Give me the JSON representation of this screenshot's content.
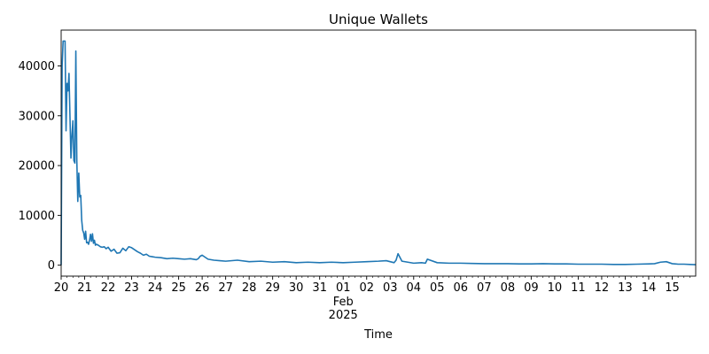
{
  "chart_data": {
    "type": "line",
    "title": "Unique Wallets",
    "xlabel": "Time",
    "ylabel": "",
    "ylim": [
      -2200,
      47200
    ],
    "y_ticks": [
      0,
      10000,
      20000,
      30000,
      40000
    ],
    "y_tick_labels": [
      "0",
      "10000",
      "20000",
      "30000",
      "40000"
    ],
    "xlim": [
      "2025-01-20",
      "2025-02-16"
    ],
    "x_ticks": [
      {
        "date": "2025-01-20",
        "label": "20"
      },
      {
        "date": "2025-01-21",
        "label": "21"
      },
      {
        "date": "2025-01-22",
        "label": "22"
      },
      {
        "date": "2025-01-23",
        "label": "23"
      },
      {
        "date": "2025-01-24",
        "label": "24"
      },
      {
        "date": "2025-01-25",
        "label": "25"
      },
      {
        "date": "2025-01-26",
        "label": "26"
      },
      {
        "date": "2025-01-27",
        "label": "27"
      },
      {
        "date": "2025-01-28",
        "label": "28"
      },
      {
        "date": "2025-01-29",
        "label": "29"
      },
      {
        "date": "2025-01-30",
        "label": "30"
      },
      {
        "date": "2025-01-31",
        "label": "31"
      },
      {
        "date": "2025-02-01",
        "label": "01",
        "sub1": "Feb",
        "sub2": "2025"
      },
      {
        "date": "2025-02-02",
        "label": "02"
      },
      {
        "date": "2025-02-03",
        "label": "03"
      },
      {
        "date": "2025-02-04",
        "label": "04"
      },
      {
        "date": "2025-02-05",
        "label": "05"
      },
      {
        "date": "2025-02-06",
        "label": "06"
      },
      {
        "date": "2025-02-07",
        "label": "07"
      },
      {
        "date": "2025-02-08",
        "label": "08"
      },
      {
        "date": "2025-02-09",
        "label": "09"
      },
      {
        "date": "2025-02-10",
        "label": "10"
      },
      {
        "date": "2025-02-11",
        "label": "11"
      },
      {
        "date": "2025-02-12",
        "label": "12"
      },
      {
        "date": "2025-02-13",
        "label": "13"
      },
      {
        "date": "2025-02-14",
        "label": "14"
      },
      {
        "date": "2025-02-15",
        "label": "15"
      }
    ],
    "grid": false,
    "legend": "none",
    "line_color": "#1f77b4",
    "series": [
      {
        "x": [
          "2025-01-20 00:00",
          "2025-01-20 01:00",
          "2025-01-20 02:00",
          "2025-01-20 03:00",
          "2025-01-20 04:00",
          "2025-01-20 05:00",
          "2025-01-20 06:00",
          "2025-01-20 07:00",
          "2025-01-20 08:00",
          "2025-01-20 09:00",
          "2025-01-20 10:00",
          "2025-01-20 11:00",
          "2025-01-20 12:00",
          "2025-01-20 13:00",
          "2025-01-20 14:00",
          "2025-01-20 15:00",
          "2025-01-20 16:00",
          "2025-01-20 17:00",
          "2025-01-20 18:00",
          "2025-01-20 19:00",
          "2025-01-20 20:00",
          "2025-01-20 21:00",
          "2025-01-20 22:00",
          "2025-01-20 23:00",
          "2025-01-21 00:00",
          "2025-01-21 01:00",
          "2025-01-21 02:00",
          "2025-01-21 03:00",
          "2025-01-21 04:00",
          "2025-01-21 05:00",
          "2025-01-21 06:00",
          "2025-01-21 07:00",
          "2025-01-21 08:00",
          "2025-01-21 09:00",
          "2025-01-21 10:00",
          "2025-01-21 11:00",
          "2025-01-21 12:00",
          "2025-01-21 14:00",
          "2025-01-21 16:00",
          "2025-01-21 18:00",
          "2025-01-21 20:00",
          "2025-01-21 22:00",
          "2025-01-22 00:00",
          "2025-01-22 03:00",
          "2025-01-22 06:00",
          "2025-01-22 09:00",
          "2025-01-22 12:00",
          "2025-01-22 15:00",
          "2025-01-22 18:00",
          "2025-01-22 21:00",
          "2025-01-23 00:00",
          "2025-01-23 03:00",
          "2025-01-23 06:00",
          "2025-01-23 09:00",
          "2025-01-23 12:00",
          "2025-01-23 15:00",
          "2025-01-23 18:00",
          "2025-01-23 21:00",
          "2025-01-24 00:00",
          "2025-01-24 06:00",
          "2025-01-24 12:00",
          "2025-01-24 18:00",
          "2025-01-25 00:00",
          "2025-01-25 06:00",
          "2025-01-25 12:00",
          "2025-01-25 18:00",
          "2025-01-25 20:00",
          "2025-01-25 22:00",
          "2025-01-26 00:00",
          "2025-01-26 06:00",
          "2025-01-26 12:00",
          "2025-01-26 18:00",
          "2025-01-27 00:00",
          "2025-01-27 12:00",
          "2025-01-28 00:00",
          "2025-01-28 12:00",
          "2025-01-29 00:00",
          "2025-01-29 12:00",
          "2025-01-30 00:00",
          "2025-01-30 12:00",
          "2025-01-31 00:00",
          "2025-01-31 12:00",
          "2025-02-01 00:00",
          "2025-02-01 12:00",
          "2025-02-02 00:00",
          "2025-02-02 12:00",
          "2025-02-02 20:00",
          "2025-02-03 00:00",
          "2025-02-03 04:00",
          "2025-02-03 06:00",
          "2025-02-03 08:00",
          "2025-02-03 12:00",
          "2025-02-04 00:00",
          "2025-02-04 08:00",
          "2025-02-04 12:00",
          "2025-02-04 14:00",
          "2025-02-05 00:00",
          "2025-02-05 12:00",
          "2025-02-06 00:00",
          "2025-02-06 12:00",
          "2025-02-07 00:00",
          "2025-02-07 12:00",
          "2025-02-08 00:00",
          "2025-02-08 12:00",
          "2025-02-09 00:00",
          "2025-02-09 12:00",
          "2025-02-10 00:00",
          "2025-02-10 12:00",
          "2025-02-11 00:00",
          "2025-02-11 12:00",
          "2025-02-12 00:00",
          "2025-02-12 12:00",
          "2025-02-13 00:00",
          "2025-02-13 12:00",
          "2025-02-14 00:00",
          "2025-02-14 06:00",
          "2025-02-14 12:00",
          "2025-02-14 18:00",
          "2025-02-15 00:00",
          "2025-02-15 06:00",
          "2025-02-15 12:00",
          "2025-02-15 18:00",
          "2025-02-16 00:00"
        ],
        "y": [
          0,
          40000,
          45000,
          45000,
          45000,
          27000,
          36500,
          35000,
          38500,
          30000,
          21500,
          26000,
          29000,
          21000,
          20500,
          43000,
          21000,
          12800,
          18500,
          13700,
          14000,
          9000,
          7000,
          6500,
          5200,
          6800,
          4500,
          4600,
          4200,
          5000,
          6200,
          4800,
          6300,
          4400,
          5000,
          4000,
          4200,
          4000,
          3700,
          3600,
          3700,
          3300,
          3600,
          2800,
          3200,
          2400,
          2500,
          3400,
          2900,
          3700,
          3500,
          3100,
          2700,
          2400,
          2000,
          2200,
          1800,
          1700,
          1600,
          1500,
          1300,
          1400,
          1300,
          1200,
          1300,
          1100,
          1300,
          1800,
          2000,
          1200,
          1000,
          900,
          800,
          1000,
          700,
          800,
          600,
          700,
          500,
          600,
          500,
          600,
          500,
          600,
          700,
          800,
          900,
          700,
          500,
          1000,
          2300,
          800,
          400,
          500,
          400,
          1200,
          500,
          400,
          400,
          350,
          300,
          300,
          300,
          250,
          250,
          300,
          250,
          250,
          200,
          200,
          200,
          150,
          150,
          200,
          250,
          300,
          600,
          700,
          300,
          200,
          200,
          150,
          100
        ]
      }
    ]
  }
}
